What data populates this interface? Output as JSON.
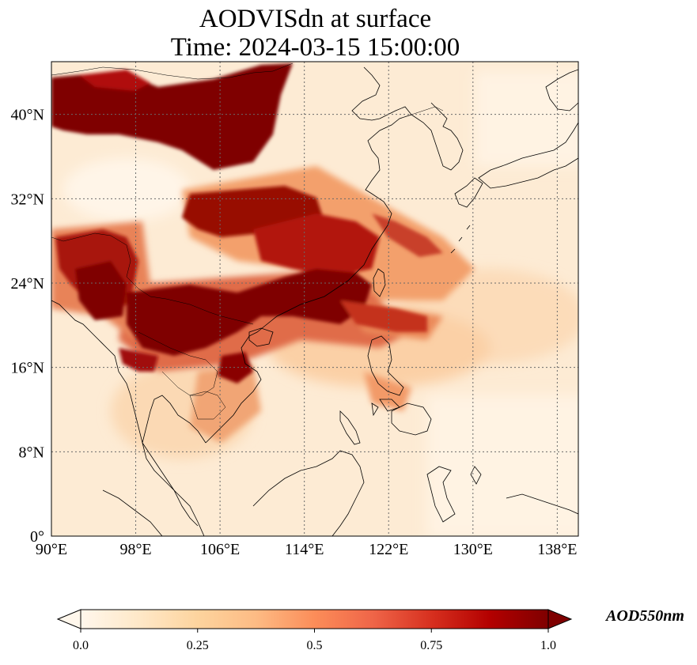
{
  "title": {
    "line1": "AODVISdn at surface",
    "line2": "Time: 2024-03-15 15:00:00"
  },
  "map": {
    "region": {
      "lon_min": 90,
      "lon_max": 140,
      "lat_min": 0,
      "lat_max": 45
    },
    "lon_ticks": [
      {
        "value": 90,
        "label": "90°E"
      },
      {
        "value": 98,
        "label": "98°E"
      },
      {
        "value": 106,
        "label": "106°E"
      },
      {
        "value": 114,
        "label": "114°E"
      },
      {
        "value": 122,
        "label": "122°E"
      },
      {
        "value": 130,
        "label": "130°E"
      },
      {
        "value": 138,
        "label": "138°E"
      }
    ],
    "lat_ticks": [
      {
        "value": 0,
        "label": "0°"
      },
      {
        "value": 8,
        "label": "8°N"
      },
      {
        "value": 16,
        "label": "16°N"
      },
      {
        "value": 24,
        "label": "24°N"
      },
      {
        "value": 32,
        "label": "32°N"
      },
      {
        "value": 40,
        "label": "40°N"
      }
    ],
    "gridlines": "dotted",
    "coastlines": true,
    "colormap": "OrRd",
    "colors": {
      "low": "#fff7ec",
      "mid": "#fc8d59",
      "high": "#7f0000"
    },
    "high_aod_regions": [
      {
        "name": "North China / Mongolia dust plume",
        "lon": [
          90,
          112
        ],
        "lat": [
          36,
          45
        ]
      },
      {
        "name": "Myanmar / Yunnan",
        "lon": [
          91,
          101
        ],
        "lat": [
          18,
          29
        ]
      },
      {
        "name": "Northern Indochina / South China",
        "lon": [
          98,
          122
        ],
        "lat": [
          16,
          26
        ]
      },
      {
        "name": "Central China",
        "lon": [
          103,
          118
        ],
        "lat": [
          25,
          33
        ]
      },
      {
        "name": "East China Sea outflow",
        "lon": [
          118,
          128
        ],
        "lat": [
          26,
          31
        ]
      }
    ]
  },
  "colorbar": {
    "label": "AOD550nm",
    "ticks": [
      {
        "value": 0.0,
        "label": "0.0"
      },
      {
        "value": 0.25,
        "label": "0.25"
      },
      {
        "value": 0.5,
        "label": "0.5"
      },
      {
        "value": 0.75,
        "label": "0.75"
      },
      {
        "value": 1.0,
        "label": "1.0"
      }
    ],
    "range": [
      0,
      1
    ],
    "extend": "both"
  }
}
